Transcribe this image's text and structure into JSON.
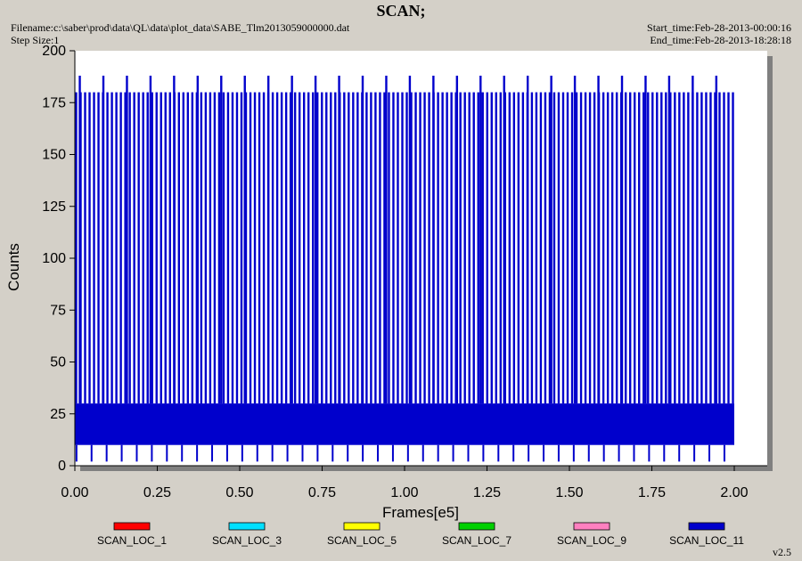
{
  "header": {
    "title": "SCAN;",
    "filename": "Filename:c:\\saber\\prod\\data\\QL\\data\\plot_data\\SABE_Tlm2013059000000.dat",
    "step_size": "Step Size:1",
    "start_time": "Start_time:Feb-28-2013-00:00:16",
    "end_time": "End_time:Feb-28-2013-18:28:18"
  },
  "version": "v2.5",
  "colors": {
    "background": "#d4d0c8",
    "plot_area": "#ffffff",
    "shadow": "#808080"
  },
  "chart_data": {
    "type": "line",
    "title": "SCAN;",
    "xlabel": "Frames[e5]",
    "ylabel": "Counts",
    "xlim": [
      0.0,
      2.1
    ],
    "ylim": [
      0,
      200
    ],
    "x_ticks": [
      "0.00",
      "0.25",
      "0.50",
      "0.75",
      "1.00",
      "1.25",
      "1.50",
      "1.75",
      "2.00"
    ],
    "x_tick_values": [
      0.0,
      0.25,
      0.5,
      0.75,
      1.0,
      1.25,
      1.5,
      1.75,
      2.0
    ],
    "y_ticks": [
      "0",
      "25",
      "50",
      "75",
      "100",
      "125",
      "150",
      "175",
      "200"
    ],
    "y_tick_values": [
      0,
      25,
      50,
      75,
      100,
      125,
      150,
      175,
      200
    ],
    "grid": false,
    "legend_position": "bottom",
    "series": [
      {
        "name": "SCAN_LOC_1",
        "color": "#ff0000"
      },
      {
        "name": "SCAN_LOC_3",
        "color": "#00e0ff"
      },
      {
        "name": "SCAN_LOC_5",
        "color": "#ffff00"
      },
      {
        "name": "SCAN_LOC_7",
        "color": "#00d000"
      },
      {
        "name": "SCAN_LOC_9",
        "color": "#ff80c0"
      },
      {
        "name": "SCAN_LOC_11",
        "color": "#0000cc",
        "x_range": [
          0.0,
          2.0
        ],
        "baseline_band": [
          10,
          30
        ],
        "dips_to": 2,
        "frequent_spike_value": 180,
        "periodic_spike_value": 188
      }
    ]
  }
}
